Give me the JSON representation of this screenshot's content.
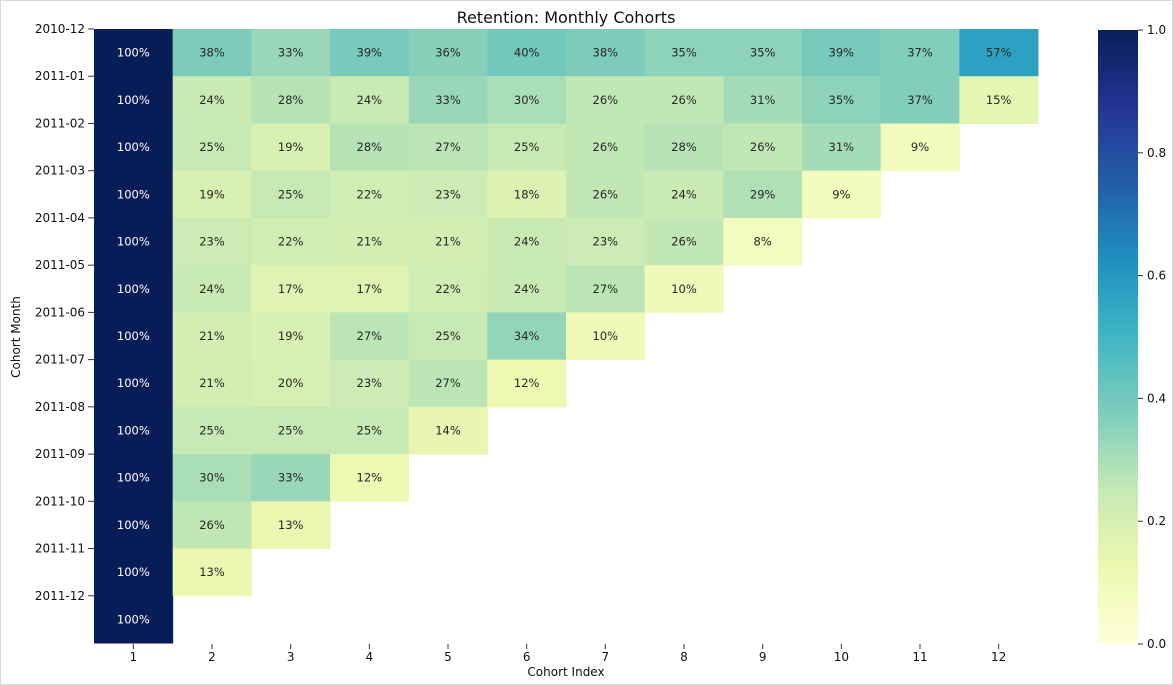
{
  "chart_data": {
    "type": "heatmap",
    "title": "Retention: Monthly Cohorts",
    "xlabel": "Cohort Index",
    "ylabel": "Cohort Month",
    "x_categories": [
      "1",
      "2",
      "3",
      "4",
      "5",
      "6",
      "7",
      "8",
      "9",
      "10",
      "11",
      "12"
    ],
    "y_categories": [
      "2010-12",
      "2011-01",
      "2011-02",
      "2011-03",
      "2011-04",
      "2011-05",
      "2011-06",
      "2011-07",
      "2011-08",
      "2011-09",
      "2011-10",
      "2011-11",
      "2011-12"
    ],
    "values": [
      [
        1.0,
        0.38,
        0.33,
        0.39,
        0.36,
        0.4,
        0.38,
        0.35,
        0.35,
        0.39,
        0.37,
        0.57
      ],
      [
        1.0,
        0.24,
        0.28,
        0.24,
        0.33,
        0.3,
        0.26,
        0.26,
        0.31,
        0.35,
        0.37,
        0.15
      ],
      [
        1.0,
        0.25,
        0.19,
        0.28,
        0.27,
        0.25,
        0.26,
        0.28,
        0.26,
        0.31,
        0.09,
        null
      ],
      [
        1.0,
        0.19,
        0.25,
        0.22,
        0.23,
        0.18,
        0.26,
        0.24,
        0.29,
        0.09,
        null,
        null
      ],
      [
        1.0,
        0.23,
        0.22,
        0.21,
        0.21,
        0.24,
        0.23,
        0.26,
        0.08,
        null,
        null,
        null
      ],
      [
        1.0,
        0.24,
        0.17,
        0.17,
        0.22,
        0.24,
        0.27,
        0.1,
        null,
        null,
        null,
        null
      ],
      [
        1.0,
        0.21,
        0.19,
        0.27,
        0.25,
        0.34,
        0.1,
        null,
        null,
        null,
        null,
        null
      ],
      [
        1.0,
        0.21,
        0.2,
        0.23,
        0.27,
        0.12,
        null,
        null,
        null,
        null,
        null,
        null
      ],
      [
        1.0,
        0.25,
        0.25,
        0.25,
        0.14,
        null,
        null,
        null,
        null,
        null,
        null,
        null
      ],
      [
        1.0,
        0.3,
        0.33,
        0.12,
        null,
        null,
        null,
        null,
        null,
        null,
        null,
        null
      ],
      [
        1.0,
        0.26,
        0.13,
        null,
        null,
        null,
        null,
        null,
        null,
        null,
        null,
        null
      ],
      [
        1.0,
        0.13,
        null,
        null,
        null,
        null,
        null,
        null,
        null,
        null,
        null,
        null
      ],
      [
        1.0,
        null,
        null,
        null,
        null,
        null,
        null,
        null,
        null,
        null,
        null,
        null
      ]
    ],
    "value_format": "percent",
    "colorbar": {
      "colormap": "YlGnBu",
      "range": [
        0.0,
        1.0
      ],
      "ticks": [
        "0.0",
        "0.2",
        "0.4",
        "0.6",
        "0.8",
        "1.0"
      ]
    },
    "grid": false,
    "legend": "none"
  }
}
